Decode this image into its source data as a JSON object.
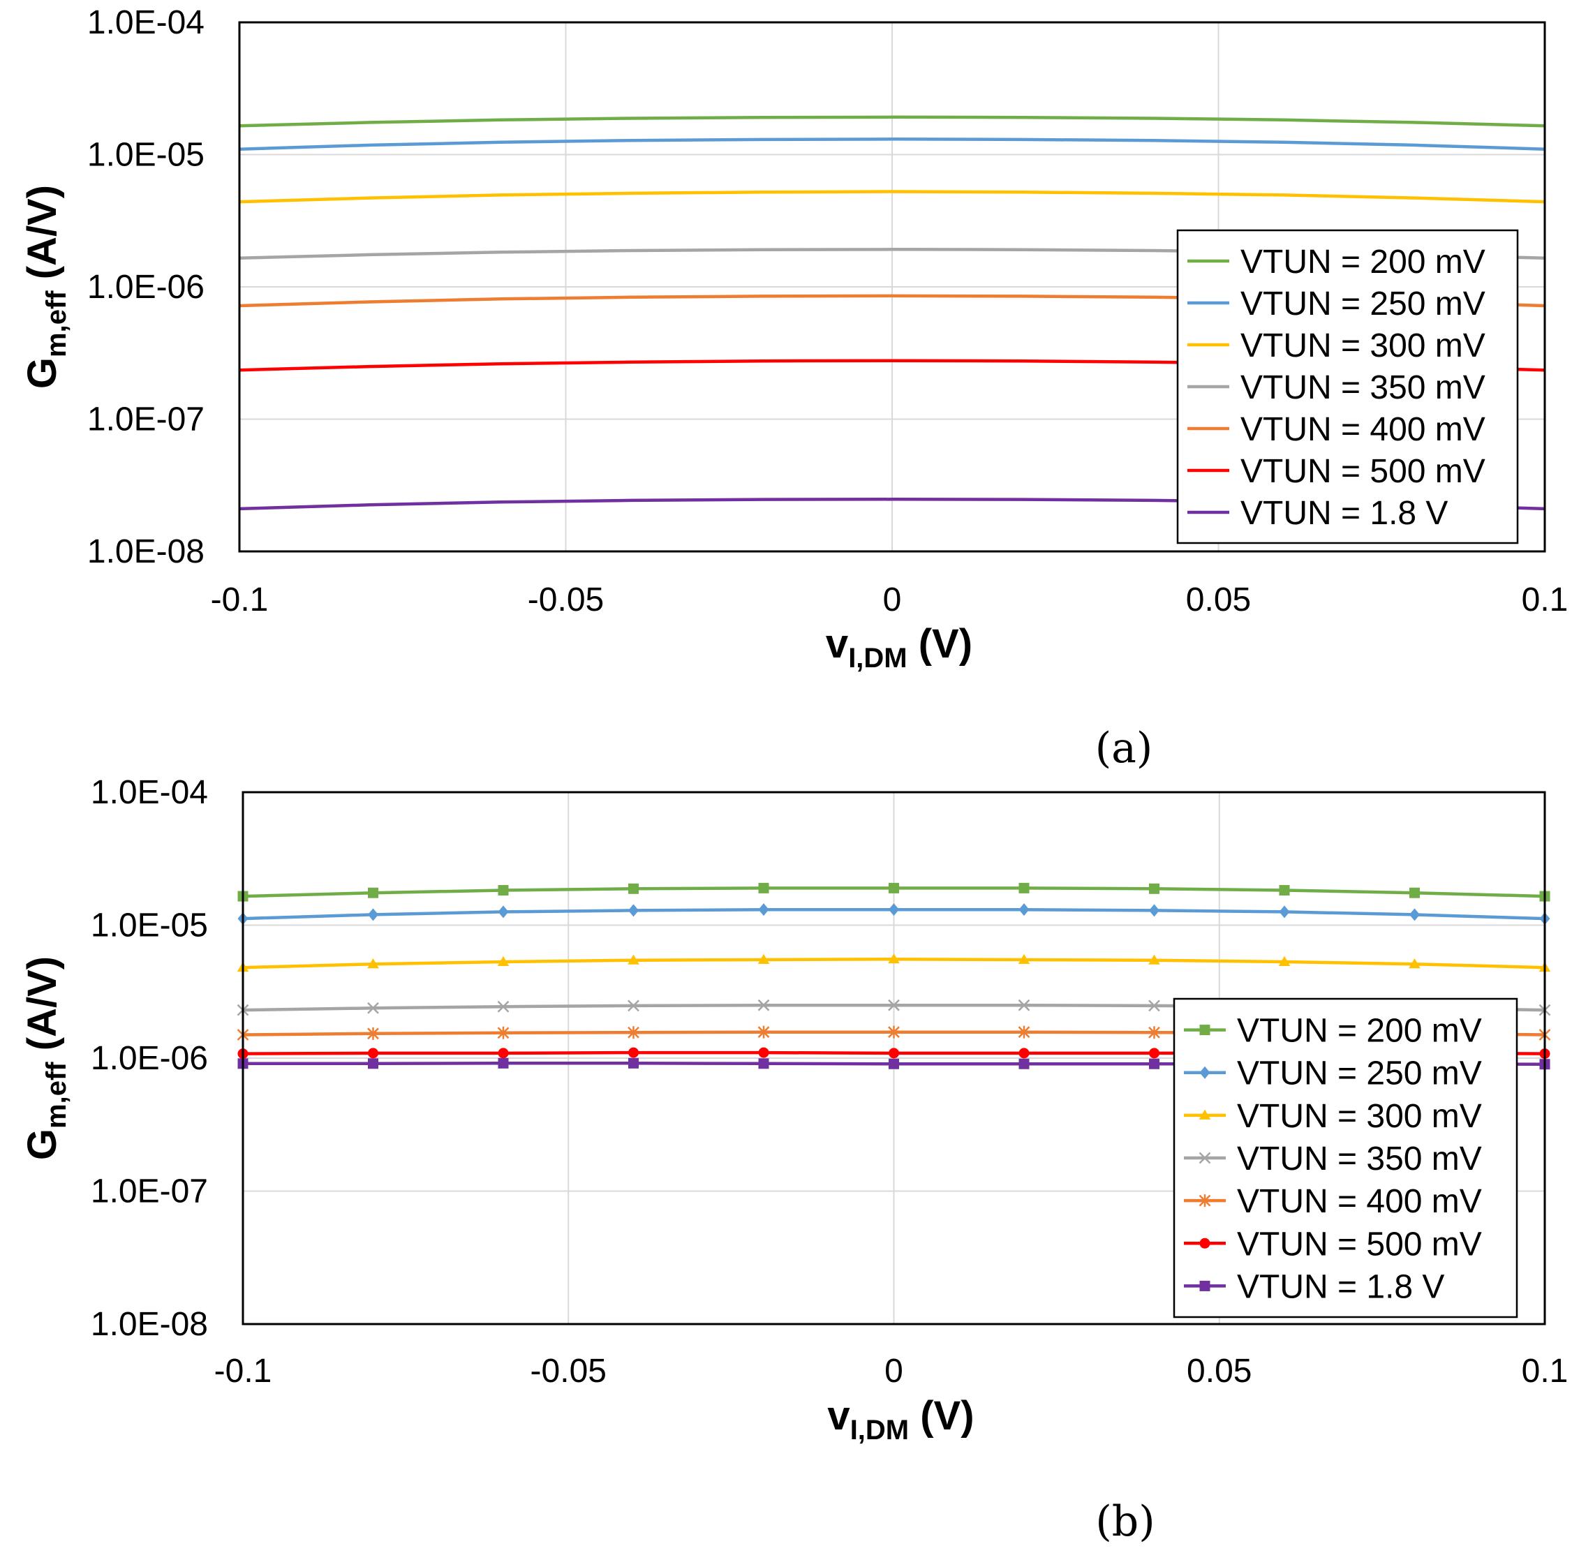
{
  "colors": {
    "VTUN = 200 mV": "#70ad47",
    "VTUN = 250 mV": "#5b9bd5",
    "VTUN = 300 mV": "#ffc000",
    "VTUN = 350 mV": "#a5a5a5",
    "VTUN = 400 mV": "#ed7d31",
    "VTUN = 500 mV": "#ff0000",
    "VTUN = 1.8 V": "#7030a0"
  },
  "chart_data": [
    {
      "panel_label": "(a)",
      "type": "line",
      "markers": false,
      "ylabel": "G",
      "ylabel_sub": "m,eff",
      "ylabel_rest": " (A/V)",
      "xlabel": "v",
      "xlabel_sub": "I,DM",
      "xlabel_rest": " (V)",
      "xlim": [
        -0.1,
        0.1
      ],
      "xticks": [
        -0.1,
        -0.05,
        0,
        0.05,
        0.1
      ],
      "xtick_labels": [
        "-0.1",
        "-0.05",
        "0",
        "0.05",
        "0.1"
      ],
      "y_scale": "log",
      "ylim": [
        1e-08,
        0.0001
      ],
      "yticks": [
        1e-08,
        1e-07,
        1e-06,
        1e-05,
        0.0001
      ],
      "ytick_labels": [
        "1.0E-08",
        "1.0E-07",
        "1.0E-06",
        "1.0E-05",
        "1.0E-04"
      ],
      "grid": true,
      "legend_position": "right",
      "x": [
        -0.1,
        -0.08,
        -0.06,
        -0.04,
        -0.02,
        0,
        0.02,
        0.04,
        0.06,
        0.08,
        0.1
      ],
      "series": [
        {
          "name": "VTUN = 200 mV",
          "marker": "none",
          "values": [
            1.65e-05,
            1.75e-05,
            1.83e-05,
            1.88e-05,
            1.91e-05,
            1.92e-05,
            1.91e-05,
            1.88e-05,
            1.83e-05,
            1.75e-05,
            1.65e-05
          ]
        },
        {
          "name": "VTUN = 250 mV",
          "marker": "none",
          "values": [
            1.1e-05,
            1.18e-05,
            1.24e-05,
            1.28e-05,
            1.3e-05,
            1.31e-05,
            1.3e-05,
            1.28e-05,
            1.24e-05,
            1.18e-05,
            1.1e-05
          ]
        },
        {
          "name": "VTUN = 300 mV",
          "marker": "none",
          "values": [
            4.4e-06,
            4.7e-06,
            4.95e-06,
            5.1e-06,
            5.2e-06,
            5.25e-06,
            5.2e-06,
            5.1e-06,
            4.95e-06,
            4.7e-06,
            4.4e-06
          ]
        },
        {
          "name": "VTUN = 350 mV",
          "marker": "none",
          "values": [
            1.65e-06,
            1.75e-06,
            1.83e-06,
            1.88e-06,
            1.91e-06,
            1.92e-06,
            1.91e-06,
            1.88e-06,
            1.83e-06,
            1.75e-06,
            1.65e-06
          ]
        },
        {
          "name": "VTUN = 400 mV",
          "marker": "none",
          "values": [
            7.2e-07,
            7.7e-07,
            8.1e-07,
            8.35e-07,
            8.5e-07,
            8.55e-07,
            8.5e-07,
            8.35e-07,
            8.1e-07,
            7.7e-07,
            7.2e-07
          ]
        },
        {
          "name": "VTUN = 500 mV",
          "marker": "none",
          "values": [
            2.35e-07,
            2.5e-07,
            2.62e-07,
            2.7e-07,
            2.75e-07,
            2.77e-07,
            2.75e-07,
            2.7e-07,
            2.62e-07,
            2.5e-07,
            2.35e-07
          ]
        },
        {
          "name": "VTUN = 1.8 V",
          "marker": "none",
          "values": [
            2.1e-08,
            2.25e-08,
            2.36e-08,
            2.43e-08,
            2.47e-08,
            2.48e-08,
            2.47e-08,
            2.43e-08,
            2.36e-08,
            2.25e-08,
            2.1e-08
          ]
        }
      ]
    },
    {
      "panel_label": "(b)",
      "type": "line",
      "markers": true,
      "ylabel": "G",
      "ylabel_sub": "m,eff",
      "ylabel_rest": " (A/V)",
      "xlabel": "v",
      "xlabel_sub": "I,DM",
      "xlabel_rest": " (V)",
      "xlim": [
        -0.1,
        0.1
      ],
      "xticks": [
        -0.1,
        -0.05,
        0,
        0.05,
        0.1
      ],
      "xtick_labels": [
        "-0.1",
        "-0.05",
        "0",
        "0.05",
        "0.1"
      ],
      "y_scale": "log",
      "ylim": [
        1e-08,
        0.0001
      ],
      "yticks": [
        1e-08,
        1e-07,
        1e-06,
        1e-05,
        0.0001
      ],
      "ytick_labels": [
        "1.0E-08",
        "1.0E-07",
        "1.0E-06",
        "1.0E-05",
        "1.0E-04"
      ],
      "grid": true,
      "legend_position": "right",
      "x": [
        -0.1,
        -0.08,
        -0.06,
        -0.04,
        -0.02,
        0,
        0.02,
        0.04,
        0.06,
        0.08,
        0.1
      ],
      "series": [
        {
          "name": "VTUN = 200 mV",
          "marker": "square",
          "values": [
            1.65e-05,
            1.75e-05,
            1.83e-05,
            1.88e-05,
            1.9e-05,
            1.9e-05,
            1.9e-05,
            1.88e-05,
            1.83e-05,
            1.75e-05,
            1.65e-05
          ]
        },
        {
          "name": "VTUN = 250 mV",
          "marker": "diamond",
          "values": [
            1.12e-05,
            1.2e-05,
            1.26e-05,
            1.29e-05,
            1.31e-05,
            1.31e-05,
            1.31e-05,
            1.29e-05,
            1.26e-05,
            1.2e-05,
            1.12e-05
          ]
        },
        {
          "name": "VTUN = 300 mV",
          "marker": "triangle",
          "values": [
            4.8e-06,
            5.1e-06,
            5.3e-06,
            5.45e-06,
            5.5e-06,
            5.55e-06,
            5.5e-06,
            5.45e-06,
            5.3e-06,
            5.1e-06,
            4.8e-06
          ]
        },
        {
          "name": "VTUN = 350 mV",
          "marker": "x",
          "values": [
            2.3e-06,
            2.38e-06,
            2.44e-06,
            2.48e-06,
            2.5e-06,
            2.5e-06,
            2.5e-06,
            2.48e-06,
            2.44e-06,
            2.38e-06,
            2.3e-06
          ]
        },
        {
          "name": "VTUN = 400 mV",
          "marker": "star",
          "values": [
            1.5e-06,
            1.53e-06,
            1.55e-06,
            1.56e-06,
            1.57e-06,
            1.57e-06,
            1.57e-06,
            1.56e-06,
            1.55e-06,
            1.53e-06,
            1.5e-06
          ]
        },
        {
          "name": "VTUN = 500 mV",
          "marker": "circle",
          "values": [
            1.08e-06,
            1.09e-06,
            1.09e-06,
            1.1e-06,
            1.1e-06,
            1.09e-06,
            1.09e-06,
            1.09e-06,
            1.09e-06,
            1.09e-06,
            1.08e-06
          ]
        },
        {
          "name": "VTUN = 1.8 V",
          "marker": "square",
          "values": [
            9.1e-07,
            9.1e-07,
            9.15e-07,
            9.15e-07,
            9.1e-07,
            9.05e-07,
            9.05e-07,
            9.05e-07,
            9.05e-07,
            9.05e-07,
            9e-07
          ]
        }
      ]
    }
  ]
}
